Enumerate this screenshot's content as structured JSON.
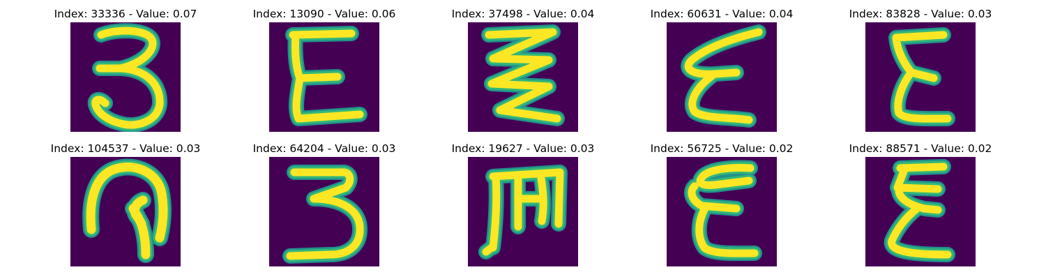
{
  "colors": {
    "background": "#440154",
    "stroke_core": "#fde725",
    "stroke_edge": "#35b779",
    "stroke_halo": "#21918c"
  },
  "panels": [
    {
      "title": "Index: 33336 - Value: 0.07",
      "glyph": "three-shape"
    },
    {
      "title": "Index: 13090 - Value: 0.06",
      "glyph": "epsilon-shape"
    },
    {
      "title": "Index: 37498 - Value: 0.04",
      "glyph": "zigzag-shape"
    },
    {
      "title": "Index: 60631 - Value: 0.04",
      "glyph": "slanted-epsilon-shape"
    },
    {
      "title": "Index: 83828 - Value: 0.03",
      "glyph": "epsilon-shape"
    },
    {
      "title": "Index: 104537 - Value: 0.03",
      "glyph": "hook-shape"
    },
    {
      "title": "Index: 64204 - Value: 0.03",
      "glyph": "three-shape"
    },
    {
      "title": "Index: 19627 - Value: 0.03",
      "glyph": "m-shape"
    },
    {
      "title": "Index: 56725 - Value: 0.02",
      "glyph": "epsilon-shape"
    },
    {
      "title": "Index: 88571 - Value: 0.02",
      "glyph": "sigma-epsilon-shape"
    }
  ]
}
